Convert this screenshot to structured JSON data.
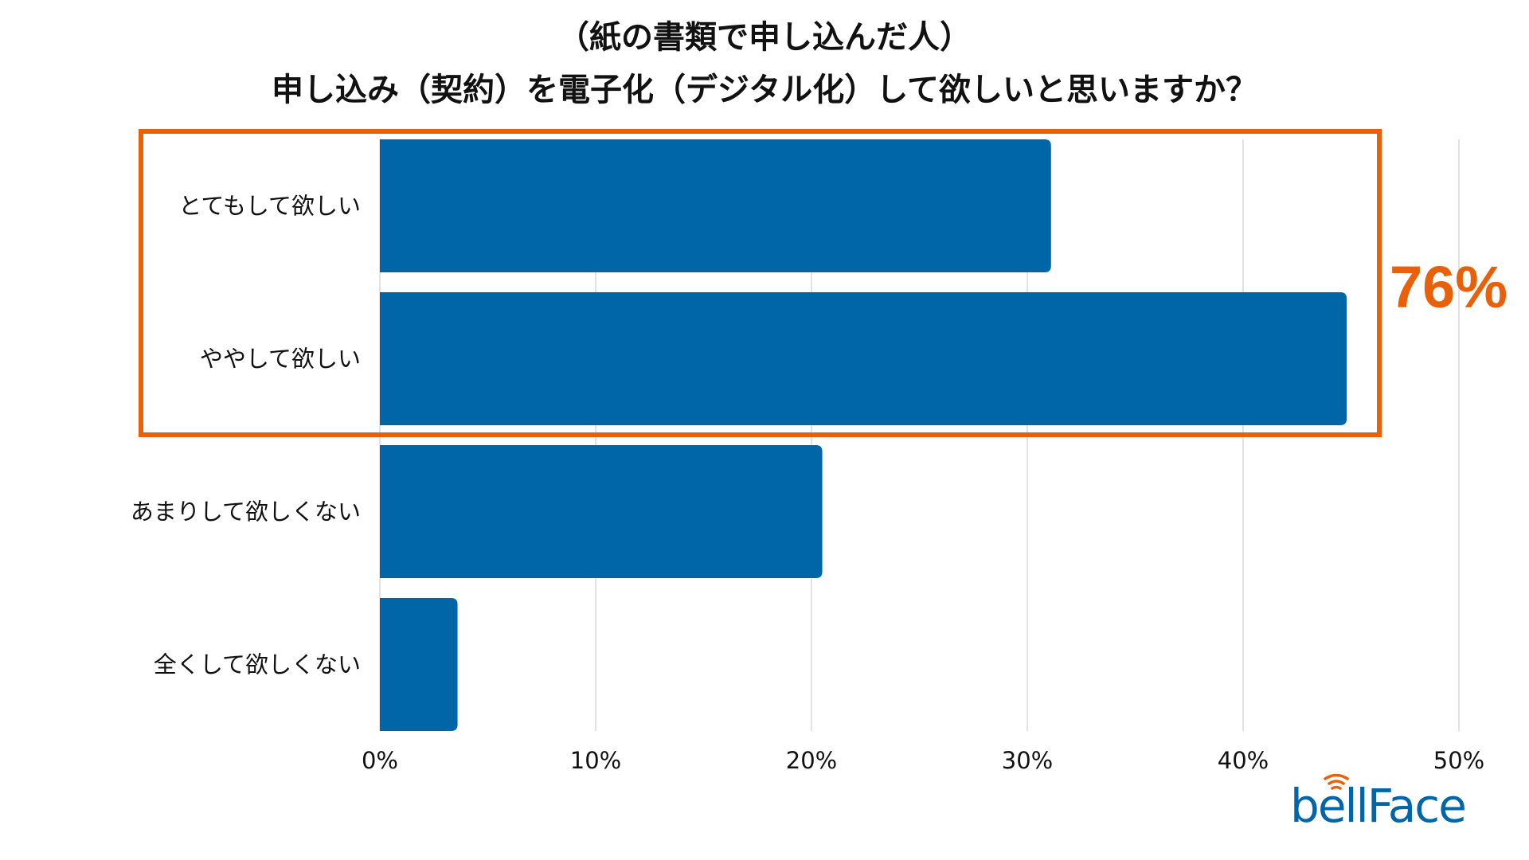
{
  "chart_data": {
    "type": "bar",
    "orientation": "horizontal",
    "title": [
      "（紙の書類で申し込んだ人）",
      "申し込み（契約）を電子化（デジタル化）して欲しいと思いますか？"
    ],
    "categories": [
      "とてもして欲しい",
      "ややして欲しい",
      "あまりして欲しくない",
      "全くして欲しくない"
    ],
    "values": [
      31.1,
      44.8,
      20.5,
      3.6
    ],
    "unit": "%",
    "xlim": [
      0,
      50
    ],
    "xticks": [
      "0%",
      "10%",
      "20%",
      "30%",
      "40%",
      "50%"
    ],
    "grid": true,
    "xlabel": "",
    "ylabel": "",
    "annotation": {
      "text": "76%",
      "covers_categories": [
        "とてもして欲しい",
        "ややして欲しい"
      ]
    }
  },
  "colors": {
    "bar": "#0066A8",
    "highlight": "#E8610A",
    "grid": "#D9D9D9"
  },
  "brand": {
    "logo_text": "bellFace"
  }
}
